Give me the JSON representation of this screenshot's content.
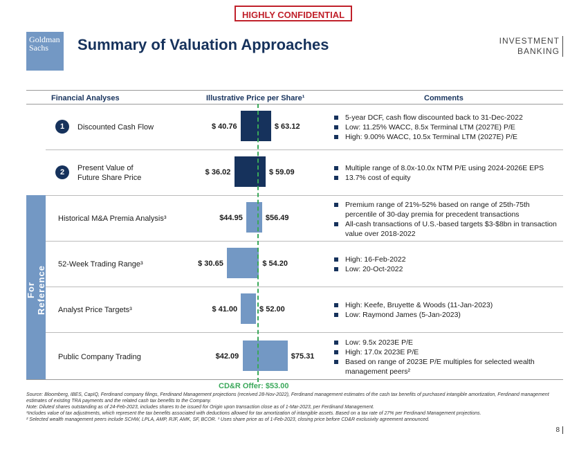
{
  "confidential": "HIGHLY CONFIDENTIAL",
  "logo": {
    "line1": "Goldman",
    "line2": "Sachs"
  },
  "title": "Summary of Valuation Approaches",
  "ib": {
    "line1": "INVESTMENT",
    "line2": "BANKING"
  },
  "headers": {
    "analyses": "Financial Analyses",
    "price": "Illustrative Price per Share¹",
    "comments": "Comments"
  },
  "sidebar": "For Reference",
  "rows": [
    {
      "number": "1",
      "label": "Discounted Cash Flow",
      "low": "$ 40.76",
      "high": "$ 63.12",
      "comments": [
        "5-year DCF, cash flow discounted back to 31-Dec-2022",
        "Low: 11.25% WACC, 8.5x Terminal LTM (2027E) P/E",
        "High: 9.00% WACC, 10.5x Terminal LTM (2027E) P/E"
      ]
    },
    {
      "number": "2",
      "label_line1": "Present Value of",
      "label_line2": "Future Share Price",
      "low": "$ 36.02",
      "high": "$ 59.09",
      "comments": [
        "Multiple range of 8.0x-10.0x NTM P/E using 2024-2026E EPS",
        "13.7% cost of equity"
      ]
    },
    {
      "label": "Historical M&A Premia Analysis³",
      "low": "$44.95",
      "high": "$56.49",
      "comments": [
        "Premium range of 21%-52% based on range of 25th-75th percentile of 30-day premia for precedent transactions",
        "All-cash transactions of U.S.-based targets $3-$8bn in transaction value over 2018-2022"
      ]
    },
    {
      "label": "52-Week Trading Range³",
      "low": "$ 30.65",
      "high": "$ 54.20",
      "comments": [
        "High: 16-Feb-2022",
        "Low: 20-Oct-2022"
      ]
    },
    {
      "label": "Analyst Price Targets³",
      "low": "$ 41.00",
      "high": "$ 52.00",
      "comments": [
        "High: Keefe, Bruyette & Woods (11-Jan-2023)",
        "Low: Raymond James (5-Jan-2023)"
      ]
    },
    {
      "label": "Public Company Trading",
      "low": "$42.09",
      "high": "$75.31",
      "comments": [
        "Low: 9.5x 2023E P/E",
        "High: 17.0x 2023E P/E",
        "Based on range of 2023E P/E multiples for selected wealth management peers²"
      ]
    }
  ],
  "chart_data": {
    "type": "bar",
    "orientation": "horizontal-range",
    "categories": [
      "Discounted Cash Flow",
      "Present Value of Future Share Price",
      "Historical M&A Premia Analysis",
      "52-Week Trading Range",
      "Analyst Price Targets",
      "Public Company Trading"
    ],
    "low": [
      40.76,
      36.02,
      44.95,
      30.65,
      41.0,
      42.09
    ],
    "high": [
      63.12,
      59.09,
      56.49,
      54.2,
      52.0,
      75.31
    ],
    "reference_line": 53.0,
    "reference_label": "CD&R Offer: $53.00"
  },
  "footnotes": {
    "source": "Source: Bloomberg, IBES, CapIQ, Ferdinand company filings, Ferdinand Management projections (received 28-Nov-2022), Ferdinand management estimates of the cash tax benefits of purchased intangible amortization, Ferdinand management estimates of existing TRA payments and the related cash tax benefits to the Company.",
    "note": "Note: Diluted shares outstanding as of 24-Feb-2023, includes shares to be issued for Origin upon transaction close as of 1-Mar-2023, per Ferdinand Management.",
    "fn1": "¹Includes value of tax adjustments, which represent the tax benefits associated with deductions allowed for tax amortization of intangible assets. Based on a tax rate of 27% per Ferdinand Management projections.",
    "fn2": "² Selected wealth management peers include SCHW, LPLA, AMP, RJF, AMK, SF, BCOR. ³ Uses share price as of 1-Feb-2023, closing price before CD&R exclusivity agreement announced."
  },
  "page_number": "8"
}
